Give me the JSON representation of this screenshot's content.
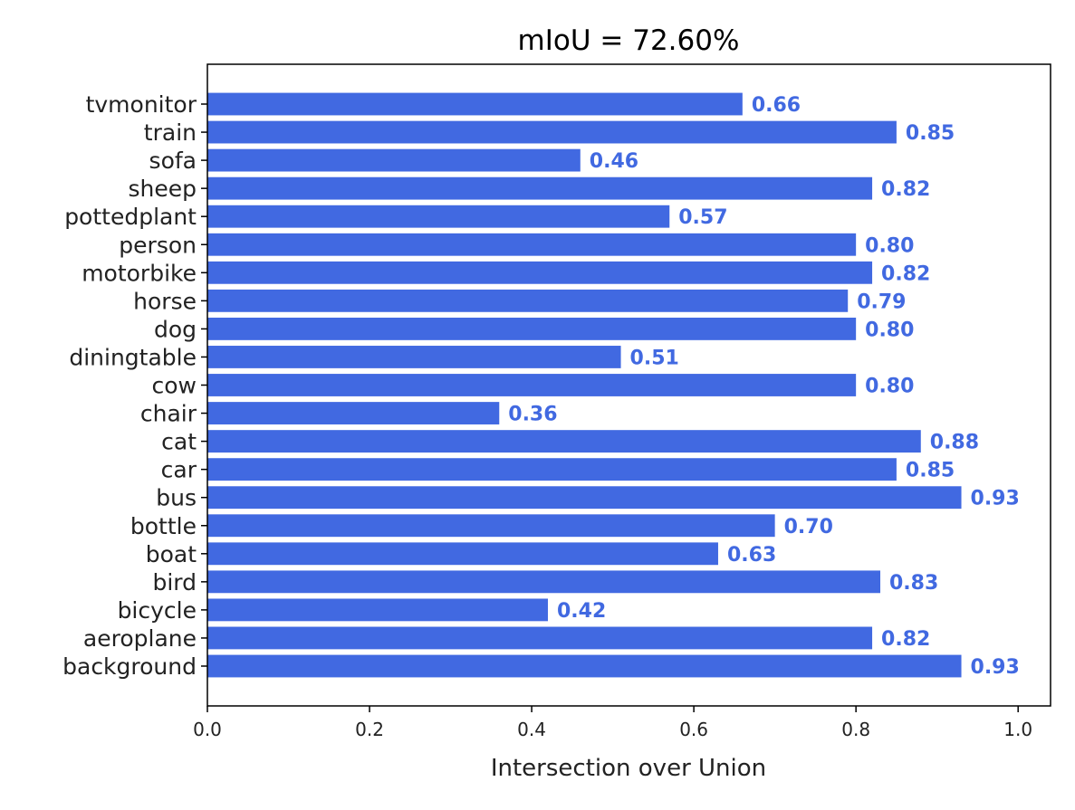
{
  "chart_data": {
    "type": "bar",
    "orientation": "horizontal",
    "title": "mIoU = 72.60%",
    "xlabel": "Intersection over Union",
    "ylabel": "",
    "xlim": [
      0,
      1.04
    ],
    "xticks": [
      0.0,
      0.2,
      0.4,
      0.6,
      0.8,
      1.0
    ],
    "xtick_labels": [
      "0.0",
      "0.2",
      "0.4",
      "0.6",
      "0.8",
      "1.0"
    ],
    "grid": false,
    "legend": "none",
    "bar_color": "#4169e1",
    "label_color": "#4169e1",
    "categories": [
      "background",
      "aeroplane",
      "bicycle",
      "bird",
      "boat",
      "bottle",
      "bus",
      "car",
      "cat",
      "chair",
      "cow",
      "diningtable",
      "dog",
      "horse",
      "motorbike",
      "person",
      "pottedplant",
      "sheep",
      "sofa",
      "train",
      "tvmonitor"
    ],
    "values": [
      0.93,
      0.82,
      0.42,
      0.83,
      0.63,
      0.7,
      0.93,
      0.85,
      0.88,
      0.36,
      0.8,
      0.51,
      0.8,
      0.79,
      0.82,
      0.8,
      0.57,
      0.82,
      0.46,
      0.85,
      0.66
    ],
    "value_labels": [
      "0.93",
      "0.82",
      "0.42",
      "0.83",
      "0.63",
      "0.70",
      "0.93",
      "0.85",
      "0.88",
      "0.36",
      "0.80",
      "0.51",
      "0.80",
      "0.79",
      "0.82",
      "0.80",
      "0.57",
      "0.82",
      "0.46",
      "0.85",
      "0.66"
    ]
  }
}
